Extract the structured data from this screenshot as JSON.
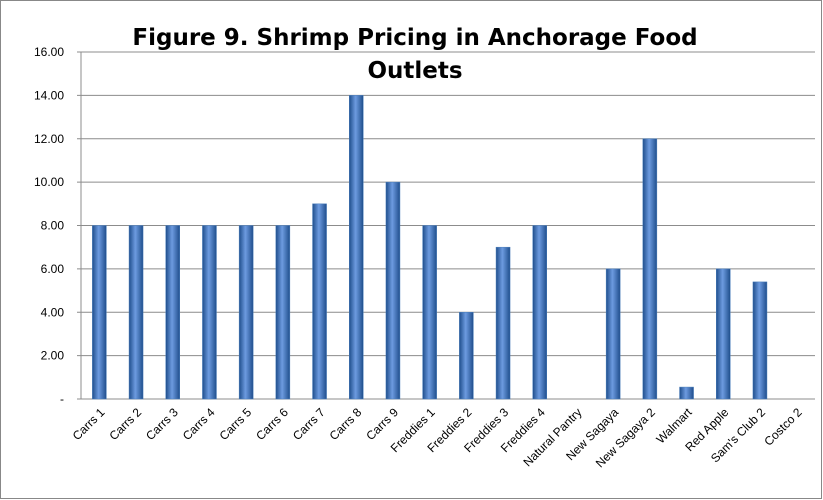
{
  "chart_data": {
    "type": "bar",
    "title": "Figure 9. Shrimp Pricing in Anchorage Food Outlets",
    "categories": [
      "Carrs 1",
      "Carrs 2",
      "Carrs 3",
      "Carrs 4",
      "Carrs 5",
      "Carrs 6",
      "Carrs 7",
      "Carrs 8",
      "Carrs 9",
      "Freddies 1",
      "Freddies 2",
      "Freddies 3",
      "Freddies 4",
      "Natural Pantry",
      "New Sagaya",
      "New Sagaya 2",
      "Walmart",
      "Red Apple",
      "Sam's Club 2",
      "Costco 2"
    ],
    "values": [
      8,
      8,
      8,
      8,
      8,
      8,
      9,
      14,
      10,
      8,
      4,
      7,
      8,
      null,
      6,
      12,
      0.55,
      6,
      5.4,
      null
    ],
    "color": "#4a7ebb",
    "ylim": [
      0,
      16
    ],
    "yticks": [
      {
        "value": 0,
        "label": "-"
      },
      {
        "value": 2,
        "label": "2.00"
      },
      {
        "value": 4,
        "label": "4.00"
      },
      {
        "value": 6,
        "label": "6.00"
      },
      {
        "value": 8,
        "label": "8.00"
      },
      {
        "value": 10,
        "label": "10.00"
      },
      {
        "value": 12,
        "label": "12.00"
      },
      {
        "value": 14,
        "label": "14.00"
      },
      {
        "value": 16,
        "label": "16.00"
      }
    ],
    "grid": true
  }
}
